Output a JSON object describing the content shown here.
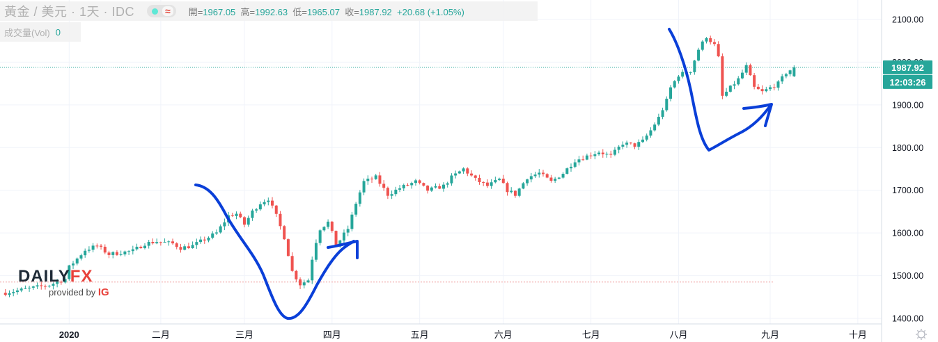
{
  "header": {
    "symbol": "黃金 / 美元 · 1天 · IDC",
    "wave_icon": "≈",
    "open_label": "開=",
    "open": "1967.05",
    "high_label": "高=",
    "high": "1992.63",
    "low_label": "低=",
    "low": "1965.07",
    "close_label": "收=",
    "close": "1987.92",
    "change": "+20.68 (+1.05%)"
  },
  "volume": {
    "label": "成交量(Vol)",
    "value": "0"
  },
  "logo": {
    "daily": "DAILY",
    "fx": "FX",
    "provided_by": "provided by",
    "ig": "IG"
  },
  "price_tag": {
    "price": "1987.92",
    "countdown": "12:03:26"
  },
  "colors": {
    "up": "#26a69a",
    "down": "#ef5350",
    "annotation": "#0a3fd8",
    "tag": "#26a69a"
  },
  "chart_data": {
    "type": "candlestick",
    "title": "黃金 / 美元",
    "interval": "1天",
    "ylim": [
      1390,
      2125
    ],
    "y_ticks": [
      1400,
      1500,
      1600,
      1700,
      1800,
      1900,
      2000,
      2100
    ],
    "y_tick_labels": [
      "1400.00",
      "1500.00",
      "1600.00",
      "1700.00",
      "1800.00",
      "1900.00",
      "2000.00",
      "2100.00"
    ],
    "x_labels": [
      "2020",
      "二月",
      "三月",
      "四月",
      "五月",
      "六月",
      "七月",
      "八月",
      "九月",
      "十月"
    ],
    "month_boundaries_day": [
      0,
      23,
      44,
      66,
      88,
      109,
      131,
      153,
      176,
      198
    ],
    "last_price": 1987.92,
    "reference_level": 1485,
    "anchors": [
      [
        -16,
        1460
      ],
      [
        -10,
        1470
      ],
      [
        -5,
        1478
      ],
      [
        -1,
        1492
      ],
      [
        0,
        1520
      ],
      [
        4,
        1560
      ],
      [
        7,
        1570
      ],
      [
        10,
        1550
      ],
      [
        16,
        1558
      ],
      [
        19,
        1575
      ],
      [
        22,
        1580
      ],
      [
        26,
        1575
      ],
      [
        28,
        1565
      ],
      [
        31,
        1570
      ],
      [
        34,
        1585
      ],
      [
        37,
        1600
      ],
      [
        40,
        1640
      ],
      [
        42,
        1645
      ],
      [
        44,
        1620
      ],
      [
        46,
        1650
      ],
      [
        48,
        1670
      ],
      [
        50,
        1680
      ],
      [
        52,
        1640
      ],
      [
        54,
        1590
      ],
      [
        56,
        1510
      ],
      [
        58,
        1480
      ],
      [
        60,
        1490
      ],
      [
        61,
        1540
      ],
      [
        62,
        1580
      ],
      [
        63,
        1610
      ],
      [
        65,
        1625
      ],
      [
        66,
        1600
      ],
      [
        67,
        1570
      ],
      [
        70,
        1610
      ],
      [
        72,
        1670
      ],
      [
        74,
        1720
      ],
      [
        77,
        1730
      ],
      [
        80,
        1690
      ],
      [
        83,
        1705
      ],
      [
        87,
        1720
      ],
      [
        90,
        1700
      ],
      [
        94,
        1710
      ],
      [
        96,
        1730
      ],
      [
        99,
        1750
      ],
      [
        102,
        1725
      ],
      [
        105,
        1710
      ],
      [
        108,
        1725
      ],
      [
        110,
        1700
      ],
      [
        112,
        1690
      ],
      [
        115,
        1730
      ],
      [
        118,
        1740
      ],
      [
        121,
        1720
      ],
      [
        124,
        1740
      ],
      [
        127,
        1770
      ],
      [
        130,
        1780
      ],
      [
        133,
        1790
      ],
      [
        136,
        1780
      ],
      [
        139,
        1810
      ],
      [
        142,
        1805
      ],
      [
        144,
        1815
      ],
      [
        146,
        1840
      ],
      [
        148,
        1870
      ],
      [
        150,
        1910
      ],
      [
        151,
        1940
      ],
      [
        153,
        1970
      ],
      [
        156,
        1980
      ],
      [
        158,
        2030
      ],
      [
        160,
        2060
      ],
      [
        162,
        2040
      ],
      [
        163,
        2010
      ],
      [
        164,
        1920
      ],
      [
        166,
        1940
      ],
      [
        168,
        1960
      ],
      [
        170,
        1990
      ],
      [
        172,
        1940
      ],
      [
        174,
        1930
      ],
      [
        176,
        1940
      ],
      [
        178,
        1950
      ],
      [
        180,
        1975
      ],
      [
        182,
        1988
      ]
    ],
    "annotations": [
      "V-shaped hand-drawn curve from mid-February to early April with arrow",
      "V-shaped hand-drawn curve through August with arrow"
    ]
  }
}
